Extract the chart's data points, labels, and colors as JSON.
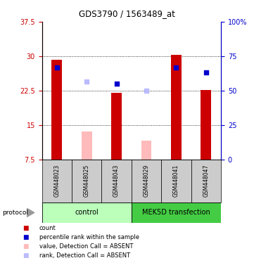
{
  "title": "GDS3790 / 1563489_at",
  "samples": [
    "GSM448023",
    "GSM448025",
    "GSM448043",
    "GSM448029",
    "GSM448041",
    "GSM448047"
  ],
  "red_bars": [
    29.2,
    null,
    22.0,
    null,
    30.2,
    22.6
  ],
  "pink_bars": [
    null,
    13.5,
    null,
    11.5,
    null,
    null
  ],
  "blue_squares": [
    27.5,
    null,
    24.0,
    null,
    27.5,
    26.5
  ],
  "lightblue_squares": [
    null,
    24.5,
    null,
    22.5,
    null,
    null
  ],
  "ylim_left": [
    7.5,
    37.5
  ],
  "ylim_right": [
    0,
    100
  ],
  "yticks_left": [
    7.5,
    15.0,
    22.5,
    30.0,
    37.5
  ],
  "yticks_right": [
    0,
    25,
    50,
    75,
    100
  ],
  "ytick_labels_left": [
    "7.5",
    "15",
    "22.5",
    "30",
    "37.5"
  ],
  "ytick_labels_right": [
    "0",
    "25",
    "50",
    "75",
    "100%"
  ],
  "hgrid_lines": [
    15.0,
    22.5,
    30.0
  ],
  "bar_width": 0.35,
  "red_color": "#cc0000",
  "pink_color": "#ffbbbb",
  "blue_color": "#0000cc",
  "lightblue_color": "#bbbbff",
  "ctrl_color": "#bbffbb",
  "mek_color": "#44cc44",
  "sample_bg": "#cccccc",
  "arrow_color": "#999999",
  "legend_items": [
    {
      "color": "#cc0000",
      "label": "count"
    },
    {
      "color": "#0000cc",
      "label": "percentile rank within the sample"
    },
    {
      "color": "#ffbbbb",
      "label": "value, Detection Call = ABSENT"
    },
    {
      "color": "#bbbbff",
      "label": "rank, Detection Call = ABSENT"
    }
  ]
}
